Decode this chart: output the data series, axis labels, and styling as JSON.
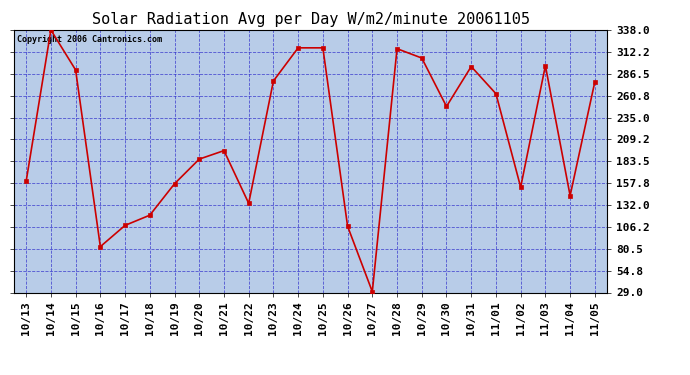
{
  "title": "Solar Radiation Avg per Day W/m2/minute 20061105",
  "copyright_text": "Copyright 2006 Cantronics.com",
  "labels": [
    "10/13",
    "10/14",
    "10/15",
    "10/16",
    "10/17",
    "10/18",
    "10/19",
    "10/20",
    "10/21",
    "10/22",
    "10/23",
    "10/24",
    "10/25",
    "10/26",
    "10/27",
    "10/28",
    "10/29",
    "10/30",
    "10/31",
    "11/01",
    "11/02",
    "11/03",
    "11/04",
    "11/05"
  ],
  "values": [
    160,
    338,
    291,
    83,
    108,
    120,
    157,
    186,
    196,
    134,
    278,
    317,
    317,
    107,
    30,
    316,
    305,
    248,
    295,
    263,
    153,
    296,
    143,
    277
  ],
  "ylim": [
    29.0,
    338.0
  ],
  "yticks": [
    29.0,
    54.8,
    80.5,
    106.2,
    132.0,
    157.8,
    183.5,
    209.2,
    235.0,
    260.8,
    286.5,
    312.2,
    338.0
  ],
  "ytick_labels": [
    "29.0",
    "54.8",
    "80.5",
    "106.2",
    "132.0",
    "157.8",
    "183.5",
    "209.2",
    "235.0",
    "260.8",
    "286.5",
    "312.2",
    "338.0"
  ],
  "line_color": "#cc0000",
  "marker_color": "#cc0000",
  "fig_bg_color": "#ffffff",
  "plot_bg_color": "#b8cce8",
  "grid_color": "#3333cc",
  "border_color": "#000000",
  "title_color": "#000000",
  "copyright_color": "#000000",
  "tick_label_color": "#000000",
  "title_fontsize": 11,
  "tick_fontsize": 8,
  "copyright_fontsize": 6
}
